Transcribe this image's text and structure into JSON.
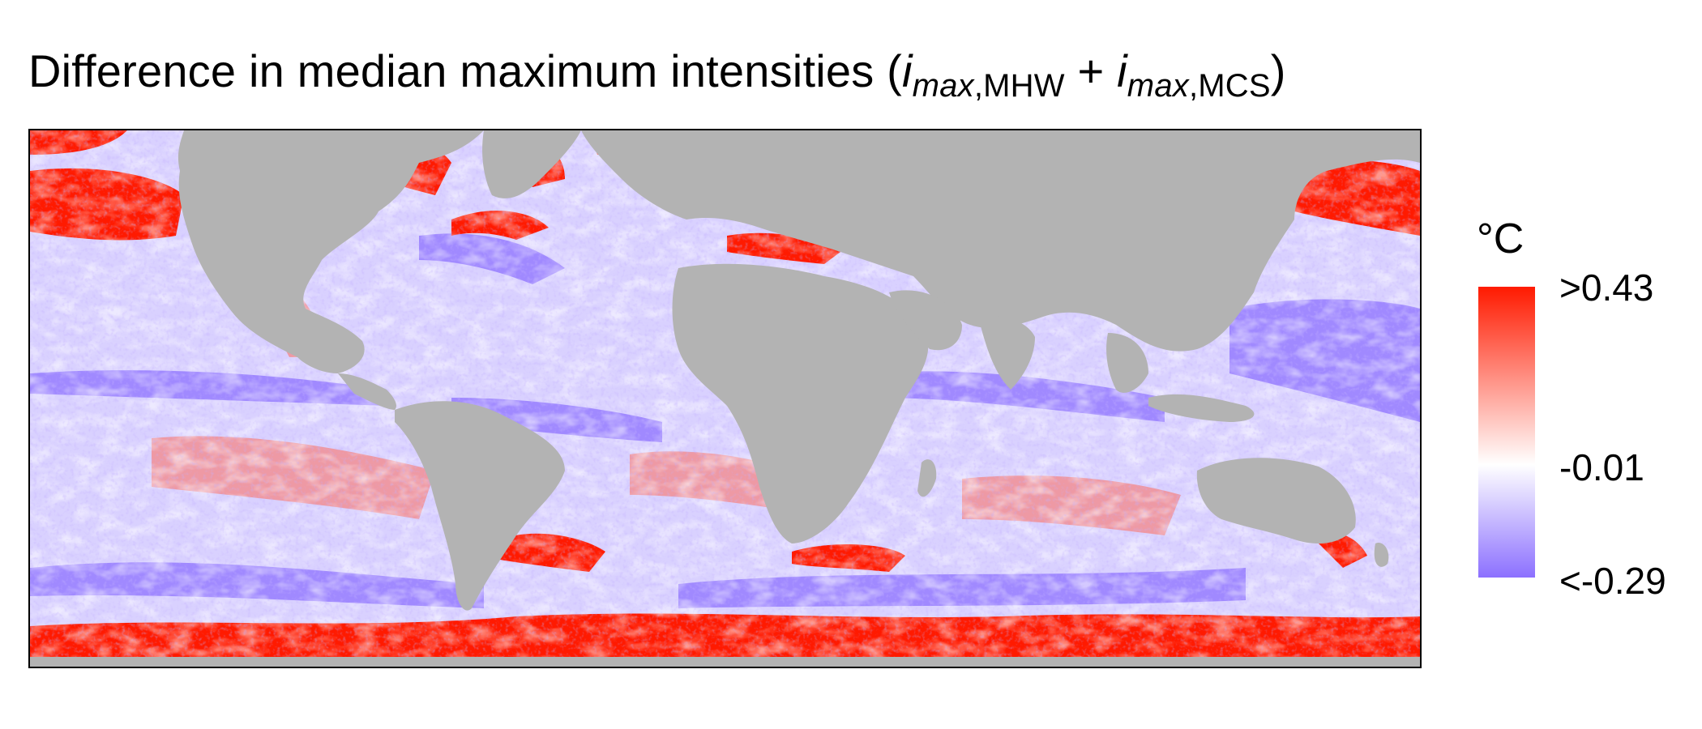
{
  "title": {
    "prefix": "Difference in median maximum intensities (",
    "term1_symbol": "i",
    "term1_sub_italic": "max",
    "term1_sub_text": ",MHW",
    "plus": " + ",
    "term2_symbol": "i",
    "term2_sub_italic": "max",
    "term2_sub_text": ",MCS",
    "suffix": ")"
  },
  "legend": {
    "unit": "°C",
    "labels": {
      "max": ">0.43",
      "mid": "-0.01",
      "min": "<-0.29"
    },
    "values": {
      "max": 0.43,
      "mid": -0.01,
      "min": -0.29
    },
    "colors": {
      "high": "#ff1a00",
      "mid": "#ffffff",
      "low": "#8c70ff"
    }
  },
  "map": {
    "land_color": "#b3b3b3",
    "ocean_warm_color": "#ff1a00",
    "ocean_cool_color": "#8c70ff"
  }
}
